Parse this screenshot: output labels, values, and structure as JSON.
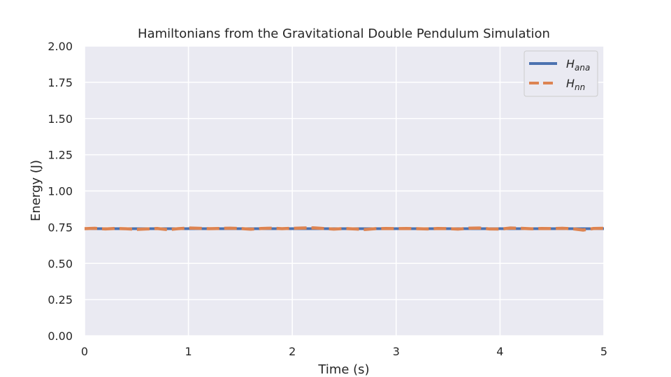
{
  "chart_data": {
    "type": "line",
    "title": "Hamiltonians from the Gravitational Double Pendulum Simulation",
    "xlabel": "Time (s)",
    "ylabel": "Energy (J)",
    "xlim": [
      0,
      5
    ],
    "ylim": [
      0,
      2
    ],
    "xticks": [
      "0",
      "1",
      "2",
      "3",
      "4",
      "5"
    ],
    "yticks": [
      "0.00",
      "0.25",
      "0.50",
      "0.75",
      "1.00",
      "1.25",
      "1.50",
      "1.75",
      "2.00"
    ],
    "grid": true,
    "legend_placement": "top-right",
    "series": [
      {
        "name": "H_ana",
        "legend_main": "H",
        "legend_sub": "ana",
        "color": "#4c72b0",
        "style": "solid",
        "x": [
          0,
          5
        ],
        "y": [
          0.74,
          0.74
        ]
      },
      {
        "name": "H_nn",
        "legend_main": "H",
        "legend_sub": "nn",
        "color": "#dd8452",
        "style": "dashed",
        "x": [
          0,
          0.1,
          0.2,
          0.3,
          0.4,
          0.5,
          0.6,
          0.7,
          0.8,
          0.9,
          1.0,
          1.1,
          1.2,
          1.3,
          1.4,
          1.5,
          1.6,
          1.7,
          1.8,
          1.9,
          2.0,
          2.1,
          2.2,
          2.3,
          2.4,
          2.5,
          2.6,
          2.7,
          2.8,
          2.9,
          3.0,
          3.1,
          3.2,
          3.3,
          3.4,
          3.5,
          3.6,
          3.7,
          3.8,
          3.9,
          4.0,
          4.1,
          4.2,
          4.3,
          4.4,
          4.5,
          4.6,
          4.7,
          4.8,
          4.9,
          5.0
        ],
        "y": [
          0.74,
          0.742,
          0.738,
          0.741,
          0.739,
          0.735,
          0.738,
          0.741,
          0.733,
          0.74,
          0.744,
          0.742,
          0.74,
          0.741,
          0.743,
          0.741,
          0.736,
          0.741,
          0.743,
          0.74,
          0.742,
          0.744,
          0.745,
          0.741,
          0.737,
          0.741,
          0.738,
          0.734,
          0.74,
          0.741,
          0.74,
          0.741,
          0.74,
          0.738,
          0.741,
          0.74,
          0.737,
          0.743,
          0.744,
          0.738,
          0.737,
          0.744,
          0.742,
          0.739,
          0.741,
          0.74,
          0.742,
          0.739,
          0.73,
          0.741,
          0.742
        ]
      }
    ]
  }
}
